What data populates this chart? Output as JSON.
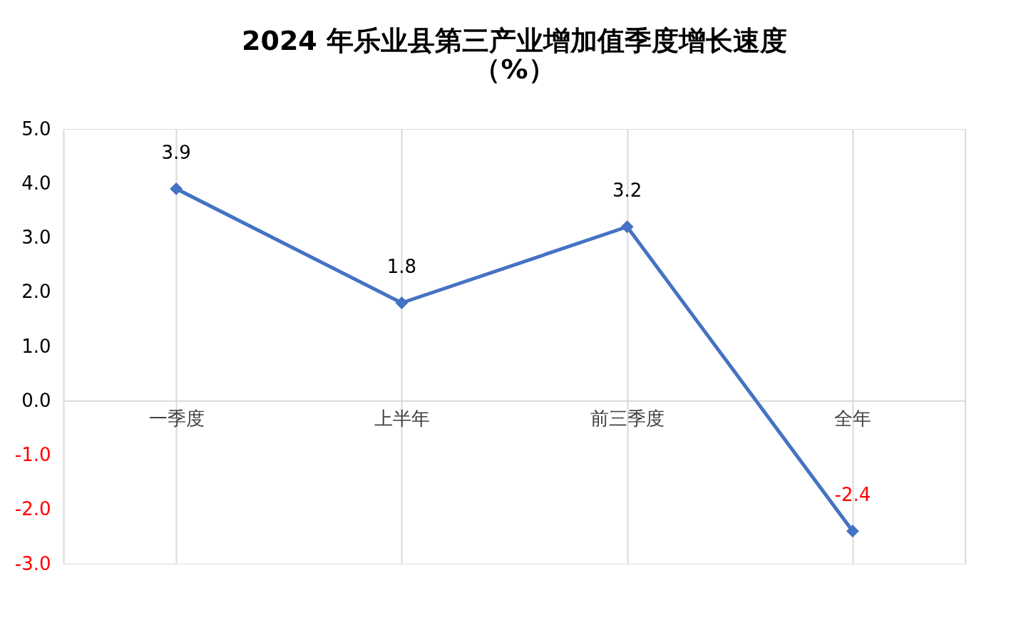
{
  "chart_data": {
    "type": "line",
    "title": [
      "2024 年乐业县第三产业增加值季度增长速度",
      "（%）"
    ],
    "categories": [
      "一季度",
      "上半年",
      "前三季度",
      "全年"
    ],
    "series": [
      {
        "color": "#4472c4",
        "values": [
          3.9,
          1.8,
          3.2,
          -2.4
        ]
      }
    ],
    "ylim": [
      -3.0,
      5.0
    ],
    "yticks": [
      {
        "value": 5,
        "label": "5.0"
      },
      {
        "value": 4,
        "label": "4.0"
      },
      {
        "value": 3,
        "label": "3.0"
      },
      {
        "value": 2,
        "label": "2.0"
      },
      {
        "value": 1,
        "label": "1.0"
      },
      {
        "value": 0,
        "label": "0.0"
      },
      {
        "value": -1,
        "label": "-1.0"
      },
      {
        "value": -2,
        "label": "-2.0"
      },
      {
        "value": -3,
        "label": "-3.0"
      }
    ],
    "grid": "x",
    "legend": false,
    "marker": "diamond",
    "line_style": "solid",
    "data_labels": true
  }
}
